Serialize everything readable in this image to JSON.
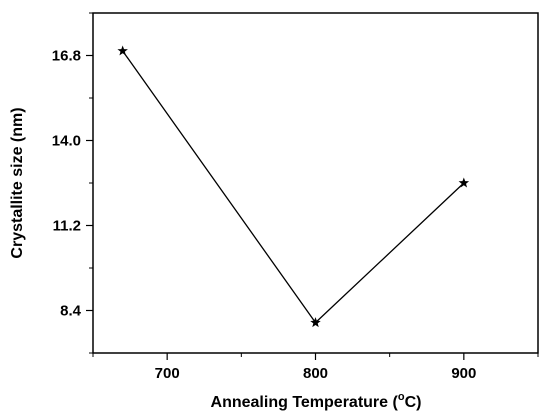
{
  "chart_data": {
    "type": "line",
    "xlabel": "Annealing Temperature (°C)",
    "xlabel_main": "Annealing Temperature (",
    "xlabel_degree": "o",
    "xlabel_unit": "C)",
    "ylabel": "Crystallite size (nm)",
    "xlim": [
      650,
      950
    ],
    "ylim": [
      7.0,
      18.2
    ],
    "x_ticks": [
      700,
      800,
      900
    ],
    "x_tick_labels": [
      "700",
      "800",
      "900"
    ],
    "x_minor_ticks": [
      650,
      750,
      850,
      950
    ],
    "y_ticks": [
      8.4,
      11.2,
      14.0,
      16.8
    ],
    "y_tick_labels": [
      "8.4",
      "11.2",
      "14.0",
      "16.8"
    ],
    "y_minor_ticks": [
      7.0,
      9.8,
      12.6,
      15.4,
      18.2
    ],
    "grid": false,
    "marker": "star",
    "color": "#000000",
    "series": [
      {
        "x": [
          670,
          800,
          900
        ],
        "y": [
          16.95,
          8.0,
          12.6
        ]
      }
    ]
  }
}
